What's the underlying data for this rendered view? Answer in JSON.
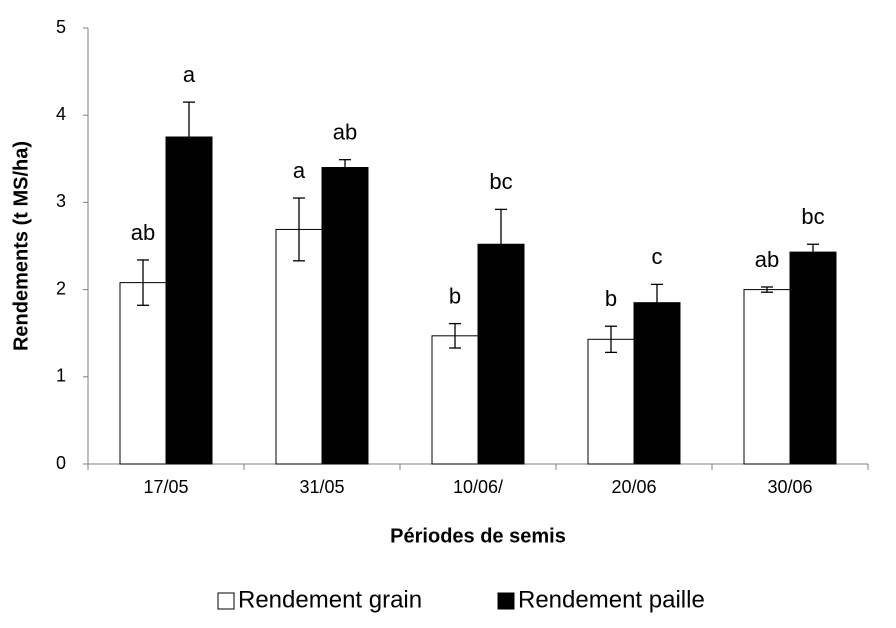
{
  "chart_data": {
    "type": "bar",
    "xlabel": "Périodes de semis",
    "ylabel": "Rendements (t MS/ha)",
    "categories": [
      "17/05",
      "31/05",
      "10/06/",
      "20/06",
      "30/06"
    ],
    "series": [
      {
        "name": "Rendement grain",
        "color": "#ffffff",
        "values": [
          2.08,
          2.69,
          1.47,
          1.43,
          2.0
        ],
        "errors": [
          0.26,
          0.36,
          0.14,
          0.15,
          0.03
        ],
        "letters": [
          "ab",
          "a",
          "b",
          "b",
          "ab"
        ]
      },
      {
        "name": "Rendement paille",
        "color": "#000000",
        "values": [
          3.75,
          3.4,
          2.52,
          1.85,
          2.43
        ],
        "errors": [
          0.4,
          0.09,
          0.4,
          0.21,
          0.09
        ],
        "letters": [
          "a",
          "ab",
          "bc",
          "c",
          "bc"
        ]
      }
    ],
    "ylim": [
      0,
      5
    ],
    "yticks": [
      0,
      1,
      2,
      3,
      4,
      5
    ],
    "grid": false,
    "legend": "bottom"
  }
}
